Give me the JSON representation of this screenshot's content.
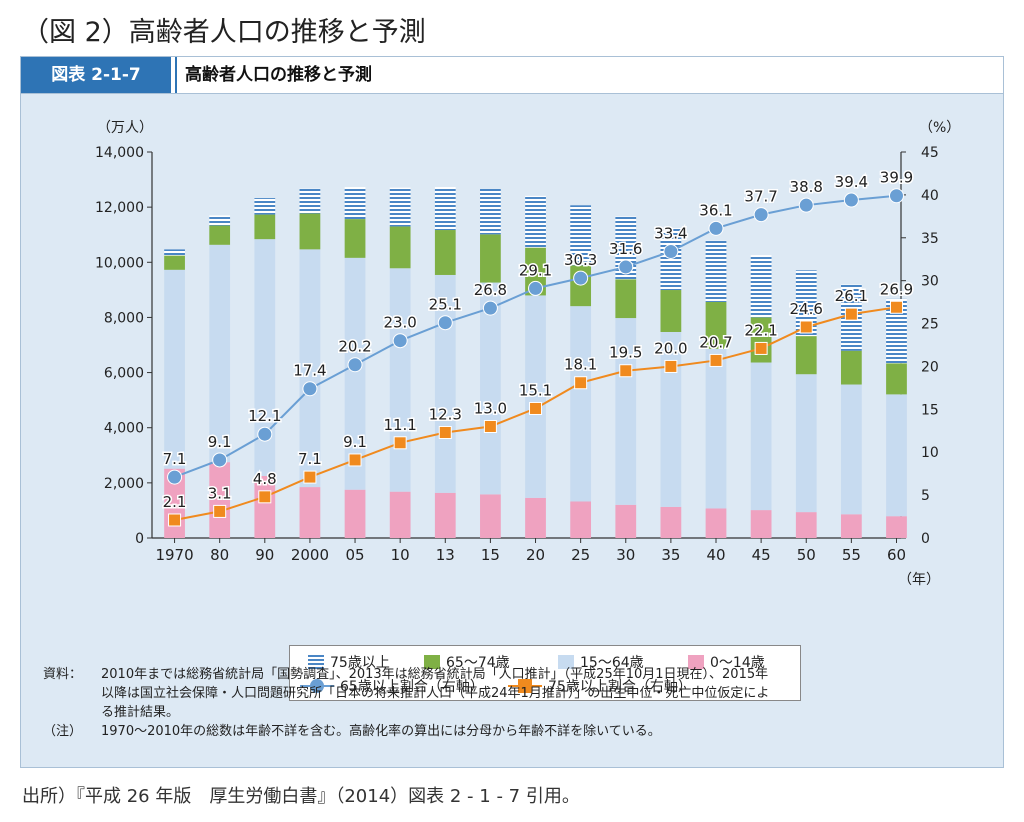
{
  "page_heading": "（図 2）高齢者人口の推移と予測",
  "figure": {
    "label": "図表 2-1-7",
    "title": "高齢者人口の推移と予測"
  },
  "chart_data": {
    "type": "bar",
    "stacked": true,
    "title": "高齢者人口の推移と予測",
    "ylabel": "（万人）",
    "y2label": "（%）",
    "xunit": "（年）",
    "ylim": [
      0,
      14000
    ],
    "y2lim": [
      0,
      45
    ],
    "yticks": [
      "0",
      "2,000",
      "4,000",
      "6,000",
      "8,000",
      "10,000",
      "12,000",
      "14,000"
    ],
    "y2ticks": [
      "0",
      "5",
      "10",
      "15",
      "20",
      "25",
      "30",
      "35",
      "40",
      "45"
    ],
    "categories": [
      "1970",
      "80",
      "90",
      "2000",
      "05",
      "10",
      "13",
      "15",
      "20",
      "25",
      "30",
      "35",
      "40",
      "45",
      "50",
      "55",
      "60"
    ],
    "series": [
      {
        "name": "0～14歳",
        "color": "#efa2c0",
        "values": [
          2515,
          2751,
          2249,
          1847,
          1752,
          1680,
          1639,
          1583,
          1457,
          1324,
          1204,
          1129,
          1073,
          1012,
          939,
          861,
          791
        ]
      },
      {
        "name": "15～64歳",
        "color": "#c7dbf0",
        "values": [
          7212,
          7883,
          8590,
          8622,
          8409,
          8103,
          7901,
          7682,
          7341,
          7085,
          6773,
          6343,
          5787,
          5353,
          5001,
          4706,
          4418
        ]
      },
      {
        "name": "65～74歳",
        "color": "#7fb045",
        "values": [
          516,
          699,
          892,
          1301,
          1407,
          1517,
          1630,
          1749,
          1733,
          1479,
          1407,
          1522,
          1701,
          1638,
          1383,
          1225,
          1128
        ]
      },
      {
        "name": "75歳以上",
        "color": "#4a86c5",
        "hatched": true,
        "values": [
          224,
          366,
          597,
          900,
          1160,
          1407,
          1560,
          1646,
          1879,
          2179,
          2278,
          2245,
          2223,
          2257,
          2385,
          2401,
          2336
        ]
      }
    ],
    "lines": [
      {
        "name": "65歳以上割合（右軸）",
        "color": "#6a9fd4",
        "marker": "circle",
        "axis": "right",
        "values": [
          7.1,
          9.1,
          12.1,
          17.4,
          20.2,
          23.0,
          25.1,
          26.8,
          29.1,
          30.3,
          31.6,
          33.4,
          36.1,
          37.7,
          38.8,
          39.4,
          39.9
        ],
        "labels": [
          "7.1",
          "9.1",
          "12.1",
          "17.4",
          "20.2",
          "23.0",
          "25.1",
          "26.8",
          "29.1",
          "30.3",
          "31.6",
          "33.4",
          "36.1",
          "37.7",
          "38.8",
          "39.4",
          "39.9"
        ]
      },
      {
        "name": "75歳以上割合（右軸）",
        "color": "#f08a1e",
        "marker": "square",
        "axis": "right",
        "values": [
          2.1,
          3.1,
          4.8,
          7.1,
          9.1,
          11.1,
          12.3,
          13.0,
          15.1,
          18.1,
          19.5,
          20.0,
          20.7,
          22.1,
          24.6,
          26.1,
          26.9
        ],
        "labels": [
          "2.1",
          "3.1",
          "4.8",
          "7.1",
          "9.1",
          "11.1",
          "12.3",
          "13.0",
          "15.1",
          "18.1",
          "19.5",
          "20.0",
          "20.7",
          "22.1",
          "24.6",
          "26.1",
          "26.9"
        ]
      }
    ],
    "legend": {
      "placement": "bottom",
      "items": [
        "75歳以上",
        "65～74歳",
        "15～64歳",
        "0～14歳",
        "65歳以上割合（右軸）",
        "75歳以上割合（右軸）"
      ]
    }
  },
  "notes": {
    "source_tag": "資料：",
    "source_lines": [
      "2010年までは総務省統計局「国勢調査」、2013年は総務省統計局「人口推計」（平成25年10月1日現在）、2015年",
      "以降は国立社会保障・人口問題研究所「日本の将来推計人口（平成24年1月推計）」の出生中位・死亡中位仮定によ",
      "る推計結果。"
    ],
    "note_tag": "（注）",
    "note_text": "1970～2010年の総数は年齢不詳を含む。高齢化率の算出には分母から年齢不詳を除いている。"
  },
  "citation": "出所）『平成 26 年版　厚生労働白書』（2014）図表 2 - 1 - 7 引用。"
}
